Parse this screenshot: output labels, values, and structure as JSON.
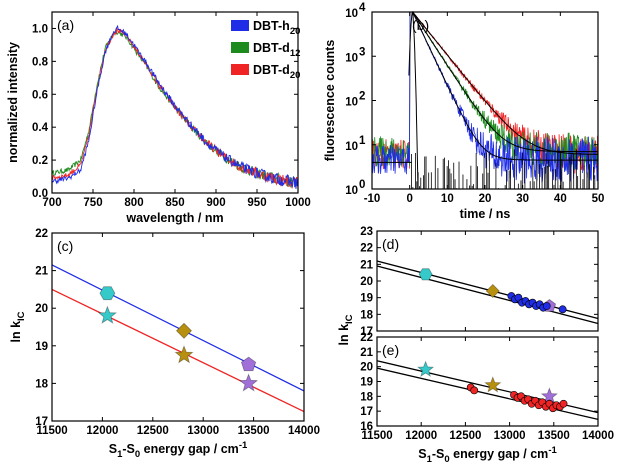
{
  "colors": {
    "h20": "#1f2de6",
    "d12": "#1d8a1d",
    "d20": "#f02424",
    "cyan": "#35c9c9",
    "gold": "#b8900f",
    "purple": "#a070d8",
    "fit_blue": "#1f2de6",
    "fit_red": "#f02424",
    "black": "#000000"
  },
  "chart_data": [
    {
      "panel": "a",
      "label": "(a)",
      "type": "line",
      "xlabel": "wavelength / nm",
      "ylabel": "normalized intensity",
      "xlim": [
        700,
        1000
      ],
      "ylim": [
        0.0,
        1.1
      ],
      "xticks": [
        700,
        750,
        800,
        850,
        900,
        950,
        1000
      ],
      "yticks": [
        0.0,
        0.2,
        0.4,
        0.6,
        0.8,
        1.0
      ],
      "legend": [
        "DBT-h",
        "DBT-d",
        "DBT-d"
      ],
      "legend_sub": [
        "20",
        "12",
        "20"
      ],
      "x": [
        700,
        720,
        735,
        745,
        755,
        765,
        775,
        780,
        790,
        800,
        815,
        830,
        850,
        870,
        890,
        910,
        930,
        950,
        970,
        1000
      ],
      "series": [
        {
          "name": "DBT-h20",
          "color_key": "h20",
          "values": [
            0.07,
            0.09,
            0.14,
            0.32,
            0.62,
            0.86,
            0.98,
            1.0,
            0.97,
            0.9,
            0.79,
            0.67,
            0.53,
            0.41,
            0.3,
            0.22,
            0.16,
            0.12,
            0.09,
            0.06
          ]
        },
        {
          "name": "DBT-d12",
          "color_key": "d12",
          "values": [
            0.12,
            0.14,
            0.2,
            0.38,
            0.66,
            0.88,
            0.97,
            0.98,
            0.95,
            0.88,
            0.77,
            0.65,
            0.52,
            0.4,
            0.3,
            0.22,
            0.16,
            0.12,
            0.09,
            0.06
          ]
        },
        {
          "name": "DBT-d20",
          "color_key": "d20",
          "values": [
            0.09,
            0.11,
            0.17,
            0.35,
            0.64,
            0.87,
            0.97,
            0.99,
            0.96,
            0.89,
            0.78,
            0.66,
            0.52,
            0.4,
            0.3,
            0.22,
            0.16,
            0.12,
            0.09,
            0.06
          ]
        }
      ]
    },
    {
      "panel": "b",
      "label": "(b)",
      "type": "line",
      "yscale": "log",
      "xlabel": "time / ns",
      "ylabel": "fluorescence counts",
      "xlim": [
        -10,
        50
      ],
      "ylim": [
        1,
        10000
      ],
      "xticks": [
        -10,
        0,
        10,
        20,
        30,
        40,
        50
      ],
      "yticks": [
        1,
        10,
        100,
        1000,
        10000
      ],
      "ytick_labels": [
        "10",
        "10",
        "10",
        "10",
        "10"
      ],
      "ytick_exponents": [
        "0",
        "1",
        "2",
        "3",
        "4"
      ],
      "peak_time": 0.8,
      "peak_counts": 10000,
      "series": [
        {
          "name": "DBT-h20",
          "color_key": "h20",
          "lifetime": 2.4,
          "background": 4.5
        },
        {
          "name": "DBT-d12",
          "color_key": "d12",
          "lifetime": 3.3,
          "background": 7
        },
        {
          "name": "DBT-d20",
          "color_key": "d20",
          "lifetime": 4.1,
          "background": 6
        },
        {
          "name": "IRF",
          "color_key": "black",
          "width": 1.0,
          "background": 1.2
        }
      ]
    },
    {
      "panel": "c",
      "label": "(c)",
      "type": "scatter",
      "xlabel": "S1-S0 energy gap / cm-1",
      "xlabel_parts": [
        "S",
        "1",
        "-S",
        "0",
        " energy gap / cm",
        "-1"
      ],
      "ylabel": "ln kIC",
      "ylabel_parts": [
        "ln k",
        "IC"
      ],
      "xlim": [
        11500,
        14000
      ],
      "ylim": [
        17,
        22
      ],
      "xticks": [
        11500,
        12000,
        12500,
        13000,
        13500,
        14000
      ],
      "yticks": [
        17,
        18,
        19,
        20,
        21,
        22
      ],
      "fit_lines": [
        {
          "color_key": "fit_blue",
          "x": [
            11500,
            14000
          ],
          "y": [
            21.15,
            17.8
          ]
        },
        {
          "color_key": "fit_red",
          "x": [
            11500,
            14000
          ],
          "y": [
            20.5,
            17.25
          ]
        }
      ],
      "points": [
        {
          "x": 12050,
          "y": 20.4,
          "shape": "hexagon",
          "color_key": "cyan"
        },
        {
          "x": 12810,
          "y": 19.4,
          "shape": "diamond",
          "color_key": "gold"
        },
        {
          "x": 13450,
          "y": 18.5,
          "shape": "pentagon",
          "color_key": "purple"
        },
        {
          "x": 12050,
          "y": 19.8,
          "shape": "star",
          "color_key": "cyan"
        },
        {
          "x": 12810,
          "y": 18.75,
          "shape": "star",
          "color_key": "gold"
        },
        {
          "x": 13450,
          "y": 18.0,
          "shape": "star",
          "color_key": "purple"
        }
      ]
    },
    {
      "panel": "d",
      "label": "(d)",
      "type": "scatter",
      "xlim": [
        11500,
        14000
      ],
      "ylim": [
        17,
        23
      ],
      "yticks": [
        17,
        18,
        19,
        20,
        21,
        22,
        23
      ],
      "fit_lines": [
        {
          "color_key": "black",
          "x": [
            11500,
            14000
          ],
          "y": [
            21.2,
            17.75
          ]
        },
        {
          "color_key": "black",
          "x": [
            11500,
            14000
          ],
          "y": [
            20.9,
            17.45
          ]
        }
      ],
      "points": [
        {
          "x": 12050,
          "y": 20.4,
          "shape": "hexagon",
          "color_key": "cyan"
        },
        {
          "x": 12810,
          "y": 19.4,
          "shape": "diamond",
          "color_key": "gold"
        },
        {
          "x": 13450,
          "y": 18.5,
          "shape": "pentagon",
          "color_key": "purple"
        },
        {
          "x": 13020,
          "y": 19.1,
          "shape": "circle",
          "color_key": "h20"
        },
        {
          "x": 13060,
          "y": 18.9,
          "shape": "circle",
          "color_key": "h20"
        },
        {
          "x": 13100,
          "y": 19.0,
          "shape": "circle",
          "color_key": "h20"
        },
        {
          "x": 13140,
          "y": 18.7,
          "shape": "circle",
          "color_key": "h20"
        },
        {
          "x": 13180,
          "y": 18.8,
          "shape": "circle",
          "color_key": "h20"
        },
        {
          "x": 13220,
          "y": 18.6,
          "shape": "circle",
          "color_key": "h20"
        },
        {
          "x": 13260,
          "y": 18.7,
          "shape": "circle",
          "color_key": "h20"
        },
        {
          "x": 13300,
          "y": 18.5,
          "shape": "circle",
          "color_key": "h20"
        },
        {
          "x": 13340,
          "y": 18.6,
          "shape": "circle",
          "color_key": "h20"
        },
        {
          "x": 13380,
          "y": 18.4,
          "shape": "circle",
          "color_key": "h20"
        },
        {
          "x": 13420,
          "y": 18.5,
          "shape": "circle",
          "color_key": "h20"
        },
        {
          "x": 13600,
          "y": 18.3,
          "shape": "circle",
          "color_key": "h20"
        }
      ]
    },
    {
      "panel": "e",
      "label": "(e)",
      "type": "scatter",
      "xlabel": "S1-S0 energy gap / cm-1",
      "xlabel_parts": [
        "S",
        "1",
        "-S",
        "0",
        " energy gap / cm",
        "-1"
      ],
      "ylabel": "ln kIC",
      "ylabel_parts": [
        "ln k",
        "IC"
      ],
      "xlim": [
        11500,
        14000
      ],
      "ylim": [
        16,
        22
      ],
      "xticks": [
        11500,
        12000,
        12500,
        13000,
        13500,
        14000
      ],
      "yticks": [
        16,
        17,
        18,
        19,
        20,
        21,
        22
      ],
      "fit_lines": [
        {
          "color_key": "black",
          "x": [
            11500,
            14000
          ],
          "y": [
            20.4,
            16.9
          ]
        },
        {
          "color_key": "black",
          "x": [
            11500,
            14000
          ],
          "y": [
            19.9,
            16.45
          ]
        }
      ],
      "points": [
        {
          "x": 12050,
          "y": 19.8,
          "shape": "star",
          "color_key": "cyan"
        },
        {
          "x": 12810,
          "y": 18.75,
          "shape": "star",
          "color_key": "gold"
        },
        {
          "x": 13450,
          "y": 18.0,
          "shape": "star",
          "color_key": "purple"
        },
        {
          "x": 12560,
          "y": 18.6,
          "shape": "circle",
          "color_key": "d20"
        },
        {
          "x": 12600,
          "y": 18.4,
          "shape": "circle",
          "color_key": "d20"
        },
        {
          "x": 13050,
          "y": 18.1,
          "shape": "circle",
          "color_key": "d20"
        },
        {
          "x": 13090,
          "y": 17.9,
          "shape": "circle",
          "color_key": "d20"
        },
        {
          "x": 13130,
          "y": 18.0,
          "shape": "circle",
          "color_key": "d20"
        },
        {
          "x": 13170,
          "y": 17.7,
          "shape": "circle",
          "color_key": "d20"
        },
        {
          "x": 13210,
          "y": 17.8,
          "shape": "circle",
          "color_key": "d20"
        },
        {
          "x": 13250,
          "y": 17.5,
          "shape": "circle",
          "color_key": "d20"
        },
        {
          "x": 13290,
          "y": 17.7,
          "shape": "circle",
          "color_key": "d20"
        },
        {
          "x": 13330,
          "y": 17.4,
          "shape": "circle",
          "color_key": "d20"
        },
        {
          "x": 13370,
          "y": 17.6,
          "shape": "circle",
          "color_key": "d20"
        },
        {
          "x": 13410,
          "y": 17.3,
          "shape": "circle",
          "color_key": "d20"
        },
        {
          "x": 13450,
          "y": 17.5,
          "shape": "circle",
          "color_key": "d20"
        },
        {
          "x": 13490,
          "y": 17.2,
          "shape": "circle",
          "color_key": "d20"
        },
        {
          "x": 13530,
          "y": 17.4,
          "shape": "circle",
          "color_key": "d20"
        },
        {
          "x": 13570,
          "y": 17.3,
          "shape": "circle",
          "color_key": "d20"
        },
        {
          "x": 13610,
          "y": 17.5,
          "shape": "circle",
          "color_key": "d20"
        }
      ]
    }
  ]
}
